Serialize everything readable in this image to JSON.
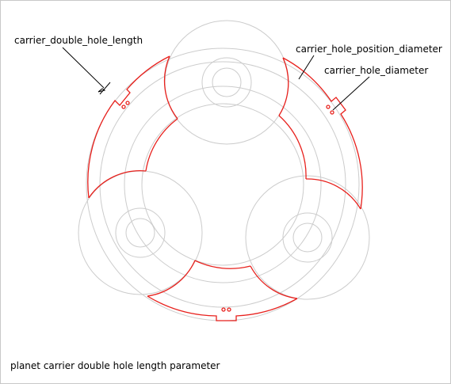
{
  "diagram": {
    "title": "planet carrier double hole length parameter",
    "labels": {
      "double_hole_length": "carrier_double_hole_length",
      "hole_position_diameter": "carrier_hole_position_diameter",
      "hole_diameter": "carrier_hole_diameter"
    },
    "colors": {
      "outline": "#e8201c",
      "construction": "#cccccc",
      "leader": "#000000"
    }
  }
}
